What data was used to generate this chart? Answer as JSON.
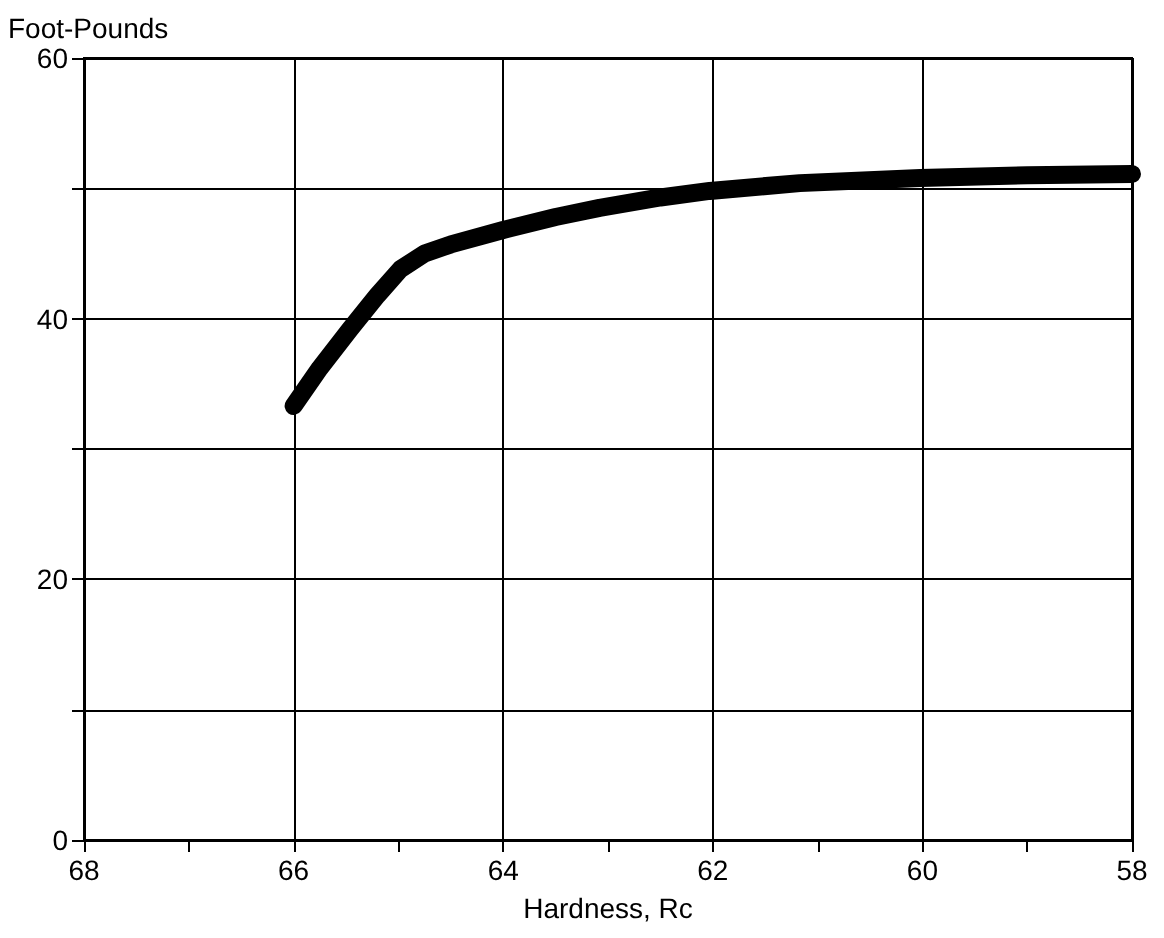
{
  "chart_data": {
    "type": "line",
    "xlabel": "Hardness, Rc",
    "ylabel": "Foot-Pounds",
    "x": [
      66,
      65.75,
      65.46,
      65.2,
      64.98,
      64.75,
      64.5,
      64,
      63.5,
      63.08,
      62.5,
      62.03,
      61.17,
      60.02,
      59,
      58
    ],
    "series": [
      {
        "color": "#000000",
        "values": [
          33.3,
          36.2,
          39.2,
          41.8,
          43.8,
          45,
          45.7,
          46.8,
          47.8,
          48.5,
          49.3,
          49.8,
          50.4,
          50.8,
          51,
          51.1
        ]
      }
    ],
    "xlim": [
      68,
      58
    ],
    "xticks": [
      68,
      {
        "value": 67,
        "label": null
      },
      66,
      {
        "value": 65,
        "label": null
      },
      64,
      {
        "value": 63,
        "label": null
      },
      62,
      {
        "value": 61,
        "label": null
      },
      60,
      {
        "value": 59,
        "label": null
      },
      58
    ],
    "ylim": [
      0,
      60
    ],
    "yticks": [
      0,
      {
        "value": 10,
        "label": null
      },
      20,
      {
        "value": 30,
        "label": null
      },
      40,
      {
        "value": 50,
        "label": null
      },
      60
    ],
    "grid": true,
    "line_style": "solid"
  }
}
